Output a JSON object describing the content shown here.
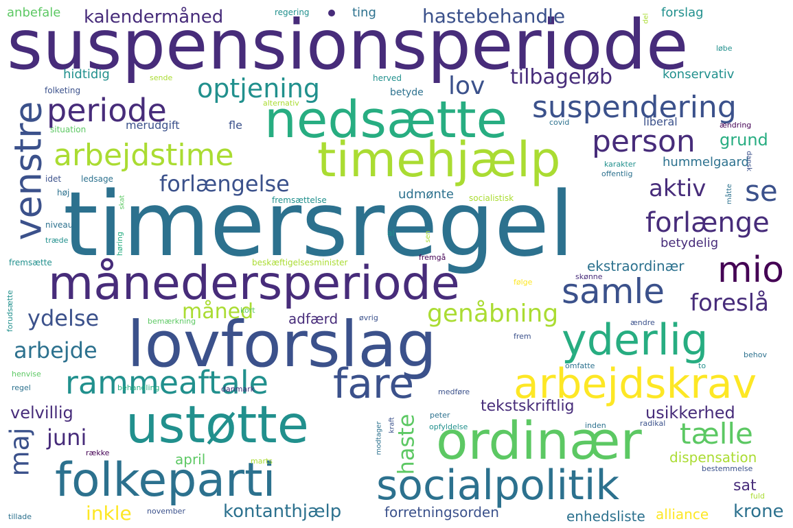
{
  "background_color": "#ffffff",
  "palette": "viridis",
  "words": {
    "timersregel": "timersregel",
    "suspensionsperiode": "suspensionsperiode",
    "lovforslag": "lovforslag",
    "maanedersperiode": "månedersperiode",
    "ustoette": "ustøtte",
    "ordinaer": "ordinær",
    "folkeparti": "folkeparti",
    "socialpolitik": "socialpolitik",
    "nedsaette": "nedsætte",
    "timehjaelp": "timehjælp",
    "venstre": "venstre",
    "arbejdskrav": "arbejdskrav",
    "yderlig": "yderlig",
    "fare": "fare",
    "rammeaftale": "rammeaftale",
    "mio": "mio",
    "samle": "samle",
    "periode": "periode",
    "suspendering": "suspendering",
    "person": "person",
    "arbejdstime": "arbejdstime",
    "optjening": "optjening",
    "maj": "maj",
    "taelle": "tælle",
    "forlaenge": "forlænge",
    "se": "se",
    "genaabning": "genåbning",
    "forlaengelse": "forlængelse",
    "aktiv": "aktiv",
    "haste": "haste",
    "foreslaa": "foreslå",
    "lov": "lov",
    "ydelse": "ydelse",
    "arbejde": "arbejde",
    "juni": "juni",
    "maaned": "måned",
    "tilbageloeb": "tilbageløb",
    "kalendermaaned": "kalendermåned",
    "hastebehandle": "hastebehandle",
    "kontanthjaelp": "kontanthjælp",
    "inkle": "inkle",
    "krone": "krone",
    "grund": "grund",
    "velvillig": "velvillig",
    "usikkerhed": "usikkerhed",
    "tekstskriftlig": "tekstskriftlig",
    "forretningsorden": "forretningsorden",
    "enhedsliste": "enhedsliste",
    "alliance": "alliance",
    "sat": "sat",
    "dispensation": "dispensation",
    "april": "april",
    "adfaerd": "adfærd",
    "ekstraordinaer": "ekstraordinær",
    "betydelig": "betydelig",
    "hummelgaard": "hummelgaard",
    "udmoente": "udmønte",
    "hidtidig": "hidtidig",
    "konservativ": "konservativ",
    "merudgift": "merudgift",
    "fle": "fle",
    "ting": "ting",
    "anbefale": "anbefale",
    "forslag": "forslag",
    "betyde": "betyde",
    "liberal": "liberal",
    "regering": "regering",
    "del": "del",
    "loebe": "løbe",
    "sende": "sende",
    "herved": "herved",
    "folketing": "folketing",
    "alternativ": "alternativ",
    "situation": "situation",
    "covid": "covid",
    "aendring": "ændring",
    "karakter": "karakter",
    "dansk": "dansk",
    "idet": "idet",
    "ledsage": "ledsage",
    "hoej": "høj",
    "skat": "skat",
    "fremsaettelse": "fremsættelse",
    "socialistisk": "socialistisk",
    "offentlig": "offentlig",
    "maatte": "måtte",
    "niveau": "niveau",
    "traede": "træde",
    "hoering": "høring",
    "al": "al",
    "sen": "sen",
    "fremsaette": "fremsætte",
    "beskaeftigelsesminister": "beskæftigelsesminister",
    "fremgaa": "fremgå",
    "foelge": "følge",
    "skoenne": "skønne",
    "forudsaette": "forudsætte",
    "bemaerkning": "bemærkning",
    "kort": "kort",
    "oevrig": "øvrig",
    "aendre": "ændre",
    "frem": "frem",
    "behov": "behov",
    "omfatte": "omfatte",
    "to": "to",
    "henvise": "henvise",
    "regel": "regel",
    "behandling": "behandling",
    "danmark": "danmark",
    "medfoere": "medføre",
    "peter": "peter",
    "inden": "inden",
    "radikal": "radikal",
    "opfyldelse": "opfyldelse",
    "modtager": "modtager",
    "kraft": "kraft",
    "raekke": "række",
    "marts": "marts",
    "bestemmelse": "bestemmelse",
    "fuld": "fuld",
    "tillade": "tillade",
    "november": "november"
  }
}
